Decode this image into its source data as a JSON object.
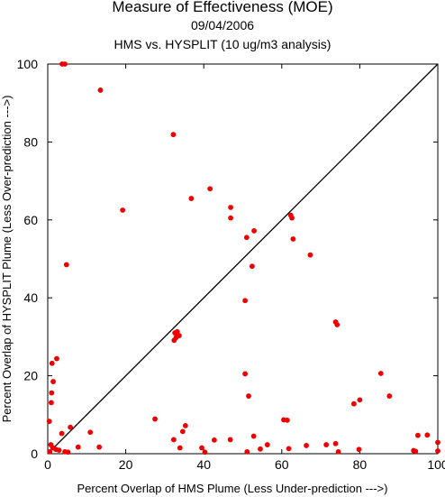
{
  "chart_data": {
    "type": "scatter",
    "title": "Measure of Effectiveness (MOE)",
    "subtitle": "09/04/2006",
    "subtitle2": "HMS vs. HYSPLIT  (10 ug/m3 analysis)",
    "xlabel": "Percent Overlap of HMS Plume (Less Under-prediction --->)",
    "ylabel": "Percent Overlap of HYSPLIT Plume (Less Over-prediction --->)",
    "xlim": [
      0,
      100
    ],
    "ylim": [
      0,
      100
    ],
    "xticks": [
      "0",
      "20",
      "40",
      "60",
      "80",
      "100"
    ],
    "yticks": [
      "0",
      "20",
      "40",
      "60",
      "80",
      "100"
    ],
    "grid": false,
    "reference_line": "diagonal y = x",
    "marker_color": "#ee0000",
    "points": [
      [
        3.7,
        100
      ],
      [
        4.4,
        100
      ],
      [
        13.5,
        93.3
      ],
      [
        32.2,
        81.9
      ],
      [
        19.2,
        62.5
      ],
      [
        36.8,
        65.5
      ],
      [
        41.6,
        68.0
      ],
      [
        4.8,
        48.5
      ],
      [
        46.9,
        63.2
      ],
      [
        46.9,
        60.5
      ],
      [
        51.0,
        55.5
      ],
      [
        52.9,
        57.2
      ],
      [
        52.4,
        48.1
      ],
      [
        50.6,
        39.3
      ],
      [
        62.3,
        61.2
      ],
      [
        62.6,
        60.5
      ],
      [
        62.9,
        55.1
      ],
      [
        67.3,
        51.0
      ],
      [
        73.8,
        33.8
      ],
      [
        74.2,
        33.1
      ],
      [
        32.4,
        29.1
      ],
      [
        32.9,
        29.8
      ],
      [
        33.2,
        31.3
      ],
      [
        33.7,
        30.3
      ],
      [
        32.6,
        31.0
      ],
      [
        2.3,
        24.4
      ],
      [
        1.1,
        23.2
      ],
      [
        1.4,
        18.5
      ],
      [
        1.0,
        15.6
      ],
      [
        0.9,
        13.1
      ],
      [
        0.4,
        8.3
      ],
      [
        50.6,
        20.5
      ],
      [
        51.5,
        14.8
      ],
      [
        85.4,
        20.6
      ],
      [
        87.6,
        14.8
      ],
      [
        80.0,
        13.8
      ],
      [
        78.5,
        12.8
      ],
      [
        27.5,
        8.9
      ],
      [
        35.3,
        7.2
      ],
      [
        34.6,
        5.7
      ],
      [
        52.8,
        4.5
      ],
      [
        5.8,
        6.8
      ],
      [
        10.9,
        5.5
      ],
      [
        3.6,
        5.2
      ],
      [
        60.5,
        8.7
      ],
      [
        61.4,
        8.6
      ],
      [
        0.8,
        2.3
      ],
      [
        1.3,
        1.5
      ],
      [
        2.1,
        1.1
      ],
      [
        2.9,
        0.9
      ],
      [
        4.4,
        0.5
      ],
      [
        5.2,
        0.4
      ],
      [
        7.8,
        1.7
      ],
      [
        13.2,
        1.7
      ],
      [
        32.3,
        3.6
      ],
      [
        33.9,
        1.5
      ],
      [
        39.5,
        1.5
      ],
      [
        40.3,
        0.4
      ],
      [
        42.7,
        3.5
      ],
      [
        46.8,
        3.6
      ],
      [
        51.1,
        0.5
      ],
      [
        54.5,
        1.2
      ],
      [
        56.3,
        2.3
      ],
      [
        61.8,
        1.3
      ],
      [
        66.3,
        2.1
      ],
      [
        71.4,
        2.3
      ],
      [
        73.8,
        2.6
      ],
      [
        74.5,
        0.5
      ],
      [
        79.8,
        1.1
      ],
      [
        93.8,
        0.8
      ],
      [
        94.3,
        0.6
      ],
      [
        94.9,
        4.7
      ],
      [
        97.3,
        4.8
      ],
      [
        100.0,
        2.9
      ],
      [
        100.0,
        0.7
      ],
      [
        0.5,
        0.5
      ]
    ]
  }
}
